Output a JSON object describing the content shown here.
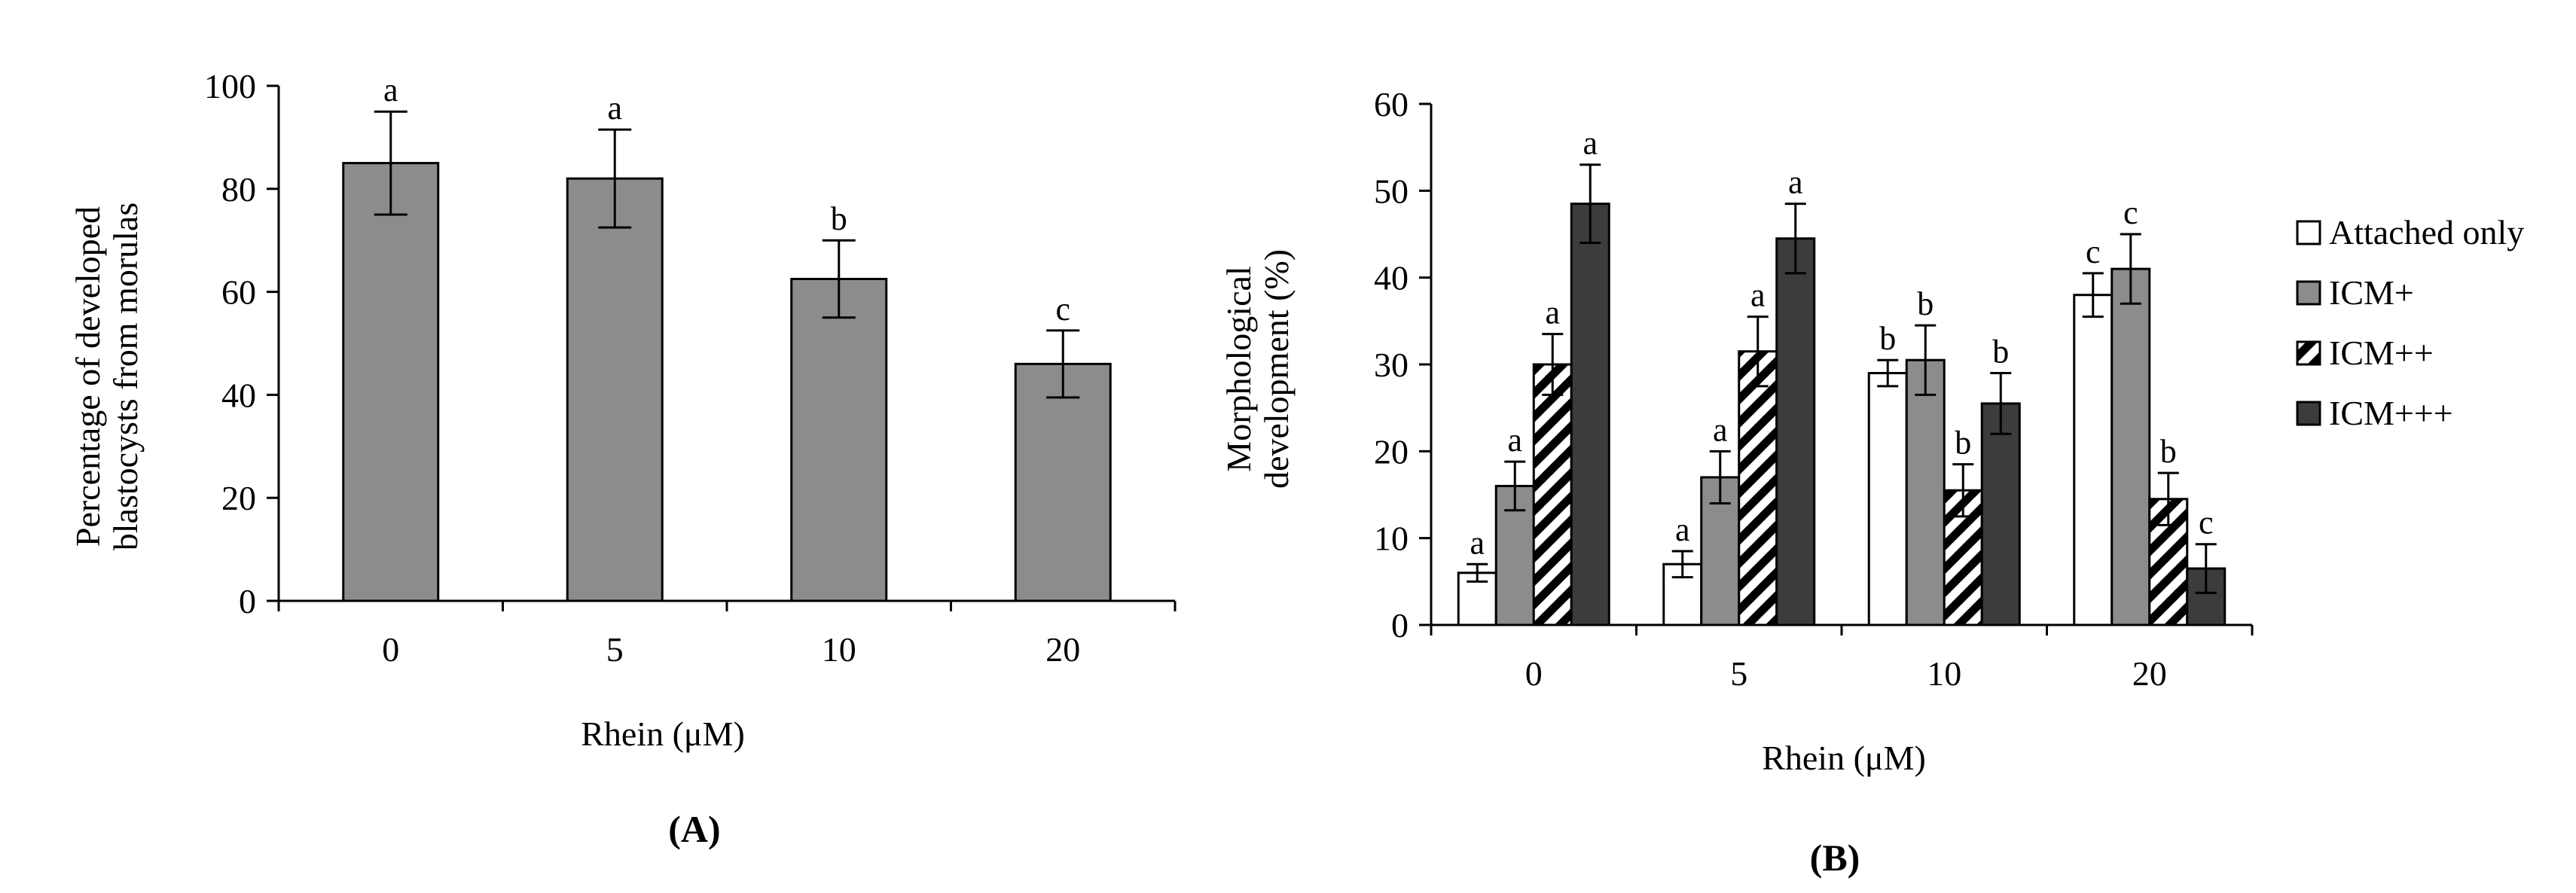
{
  "chart_data": [
    {
      "type": "bar",
      "panel_label": "(A)",
      "title": "",
      "xlabel": "Rhein (μM)",
      "ylabel_lines": [
        "Percentage of developed",
        "blastocysts from morulas"
      ],
      "categories": [
        "0",
        "5",
        "10",
        "20"
      ],
      "series": [
        {
          "name": "Blastocysts",
          "color": "#8c8c8c",
          "pattern": "solid",
          "values": [
            85,
            82,
            62.5,
            46
          ],
          "errors": [
            10,
            9.5,
            7.5,
            6.5
          ],
          "labels": [
            "a",
            "a",
            "b",
            "c"
          ]
        }
      ],
      "ylim": [
        0,
        100
      ],
      "yticks": [
        0,
        20,
        40,
        60,
        80,
        100
      ],
      "grid": false,
      "legend": "none"
    },
    {
      "type": "bar",
      "panel_label": "(B)",
      "title": "",
      "xlabel": "Rhein (μM)",
      "ylabel_lines": [
        "Morphological",
        "development (%)"
      ],
      "categories": [
        "0",
        "5",
        "10",
        "20"
      ],
      "series": [
        {
          "name": "Attached only",
          "color": "#ffffff",
          "pattern": "solid",
          "values": [
            6,
            7,
            29,
            38
          ],
          "errors": [
            1,
            1.5,
            1.5,
            2.5
          ],
          "labels": [
            "a",
            "a",
            "b",
            "c"
          ]
        },
        {
          "name": "ICM+",
          "color": "#8c8c8c",
          "pattern": "solid",
          "values": [
            16,
            17,
            30.5,
            41
          ],
          "errors": [
            2.8,
            3,
            4,
            4
          ],
          "labels": [
            "a",
            "a",
            "b",
            "c"
          ]
        },
        {
          "name": "ICM++",
          "color": "#ffffff",
          "pattern": "hatch",
          "values": [
            30,
            31.5,
            15.5,
            14.5
          ],
          "errors": [
            3.5,
            4,
            3,
            3
          ],
          "labels": [
            "a",
            "a",
            "b",
            "b"
          ]
        },
        {
          "name": "ICM+++",
          "color": "#3c3c3c",
          "pattern": "solid",
          "values": [
            48.5,
            44.5,
            25.5,
            6.5
          ],
          "errors": [
            4.5,
            4,
            3.5,
            2.8
          ],
          "labels": [
            "a",
            "a",
            "b",
            "c"
          ]
        }
      ],
      "ylim": [
        0,
        60
      ],
      "yticks": [
        0,
        10,
        20,
        30,
        40,
        50,
        60
      ],
      "grid": false,
      "legend": "right"
    }
  ]
}
